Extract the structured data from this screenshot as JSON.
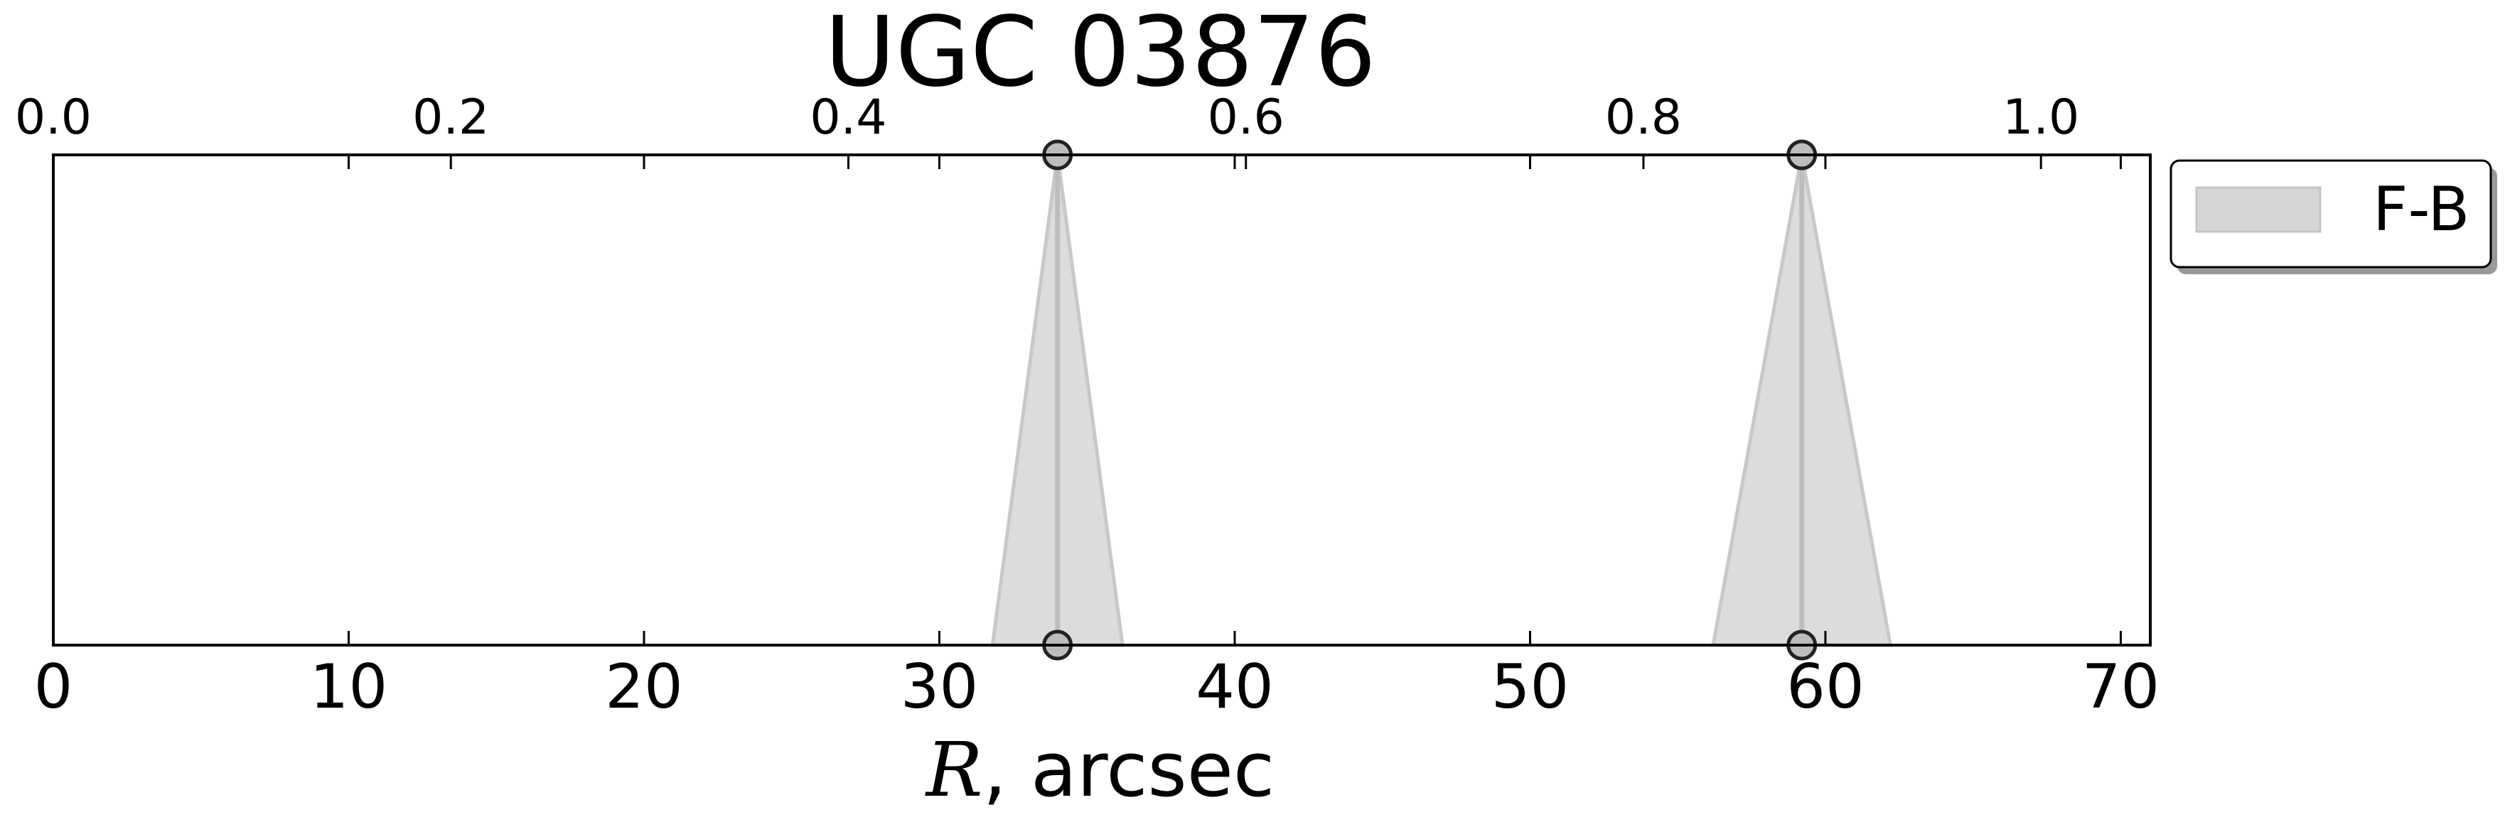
{
  "chart_data": {
    "type": "area",
    "title": "UGC 03876",
    "xlabel_symbol": "R",
    "xlabel_rest": ", arcsec",
    "xlim": [
      0,
      71
    ],
    "x_ticks": [
      "0",
      "10",
      "20",
      "30",
      "40",
      "50",
      "60",
      "70"
    ],
    "top_xlim": [
      0.0,
      1.055
    ],
    "top_ticks": [
      "0.0",
      "0.2",
      "0.4",
      "0.6",
      "0.8",
      "1.0"
    ],
    "ylim": [
      0,
      1
    ],
    "grid": false,
    "legend": {
      "position": "outside-top-right",
      "entries": [
        "F-B"
      ]
    },
    "series": [
      {
        "name": "F-B",
        "color": "#cccccc",
        "features": [
          {
            "center": 34.0,
            "base_left": 31.8,
            "base_right": 36.2
          },
          {
            "center": 59.2,
            "base_left": 56.2,
            "base_right": 62.2
          }
        ]
      }
    ]
  }
}
